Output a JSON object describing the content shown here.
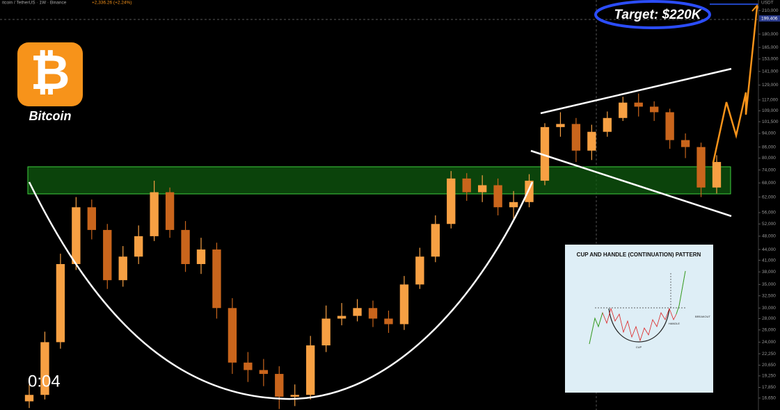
{
  "chart_data": {
    "type": "candlestick",
    "header": "itcoin / TetherUS · 1W · Binance",
    "change": "+2,336.26 (+2.24%)",
    "logo_symbol": "₿",
    "logo_label": "Bitcoin",
    "target": "Target: $220K",
    "timer": "0:04",
    "currency": "USDT",
    "log_scale": true,
    "grid": false,
    "up_color": "#f7a043",
    "down_color": "#c9651c",
    "ylim": [
      15400,
      225000
    ],
    "price_label": {
      "value": 199406,
      "label": "199,406"
    },
    "yticks": [
      {
        "value": 210000,
        "label": "210,000"
      },
      {
        "value": 180000,
        "label": "180,000"
      },
      {
        "value": 165000,
        "label": "165,000"
      },
      {
        "value": 153000,
        "label": "153,000"
      },
      {
        "value": 141000,
        "label": "141,000"
      },
      {
        "value": 129000,
        "label": "129,000"
      },
      {
        "value": 117000,
        "label": "117,000"
      },
      {
        "value": 109000,
        "label": "109,000"
      },
      {
        "value": 101500,
        "label": "101,500"
      },
      {
        "value": 94000,
        "label": "94,000"
      },
      {
        "value": 86000,
        "label": "86,000"
      },
      {
        "value": 80000,
        "label": "80,000"
      },
      {
        "value": 74000,
        "label": "74,000"
      },
      {
        "value": 68000,
        "label": "68,000"
      },
      {
        "value": 62000,
        "label": "62,000"
      },
      {
        "value": 56000,
        "label": "56,000"
      },
      {
        "value": 52000,
        "label": "52,000"
      },
      {
        "value": 48000,
        "label": "48,000"
      },
      {
        "value": 44000,
        "label": "44,000"
      },
      {
        "value": 41000,
        "label": "41,000"
      },
      {
        "value": 38000,
        "label": "38,000"
      },
      {
        "value": 35000,
        "label": "35,000"
      },
      {
        "value": 32500,
        "label": "32,500"
      },
      {
        "value": 30000,
        "label": "30,000"
      },
      {
        "value": 28000,
        "label": "28,000"
      },
      {
        "value": 26000,
        "label": "26,000"
      },
      {
        "value": 24000,
        "label": "24,000"
      },
      {
        "value": 22250,
        "label": "22,250"
      },
      {
        "value": 20650,
        "label": "20,650"
      },
      {
        "value": 19250,
        "label": "19,250"
      },
      {
        "value": 17850,
        "label": "17,850"
      },
      {
        "value": 16650,
        "label": "16,650"
      }
    ],
    "open": [
      16300,
      17000,
      24000,
      40000,
      58000,
      50000,
      36000,
      42000,
      48000,
      64000,
      50000,
      40000,
      44000,
      30000,
      21000,
      20000,
      19500,
      16800,
      17000,
      23500,
      28000,
      28500,
      30000,
      28000,
      27000,
      35000,
      42000,
      52000,
      70000,
      64000,
      67000,
      58000,
      60000,
      69000,
      98000,
      100000,
      84000,
      95000,
      104000,
      115000,
      112000,
      108000,
      90000,
      86000,
      66000
    ],
    "high": [
      18200,
      25700,
      42800,
      62000,
      61000,
      52000,
      45000,
      51500,
      69000,
      66000,
      53000,
      47500,
      46000,
      32000,
      22500,
      21500,
      20500,
      18200,
      25000,
      30500,
      31000,
      31800,
      31500,
      29500,
      37000,
      44500,
      55000,
      73500,
      72500,
      71500,
      70000,
      64500,
      72000,
      100500,
      108000,
      104000,
      99500,
      108500,
      119500,
      122000,
      116000,
      110500,
      94000,
      88500,
      81500
    ],
    "low": [
      15600,
      16500,
      23000,
      38500,
      47000,
      34000,
      34500,
      40000,
      46500,
      47500,
      38000,
      37500,
      28000,
      19500,
      18500,
      18000,
      15500,
      15800,
      16500,
      22500,
      26800,
      27500,
      26500,
      25500,
      26000,
      34000,
      40500,
      50500,
      60500,
      60000,
      55000,
      53000,
      58000,
      67000,
      92000,
      78000,
      79000,
      92000,
      102000,
      105000,
      102000,
      85000,
      80000,
      62000,
      63500
    ],
    "close": [
      17000,
      24000,
      40000,
      58000,
      50000,
      36000,
      42000,
      48000,
      64000,
      50000,
      40000,
      44000,
      30000,
      21000,
      20000,
      19500,
      16800,
      17000,
      23500,
      28000,
      28500,
      30000,
      28000,
      27000,
      35000,
      42000,
      52000,
      70000,
      64000,
      67000,
      58000,
      60000,
      69000,
      98000,
      100000,
      84000,
      95000,
      104000,
      115000,
      112000,
      108000,
      90000,
      86000,
      66000,
      78000
    ],
    "inset": {
      "title": "CUP AND HANDLE (CONTINUATION) PATTERN",
      "breakout": "BREAKOUT",
      "handle": "HANDLE",
      "cup": "CUP"
    }
  }
}
